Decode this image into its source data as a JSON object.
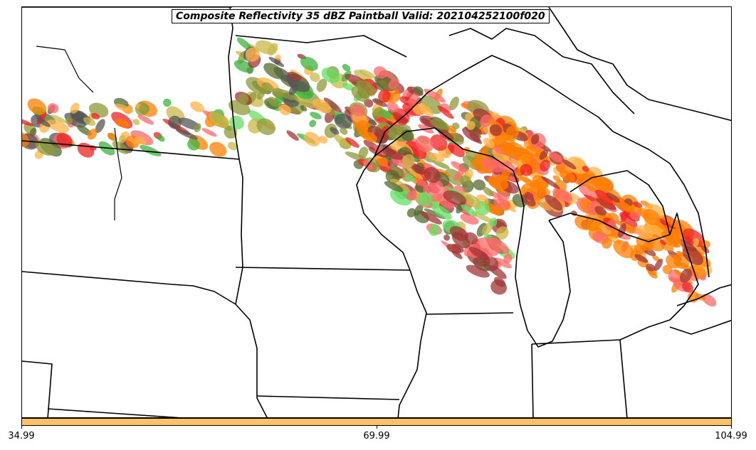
{
  "title": "Composite Reflectivity 35 dBZ Paintball Valid: 202104252100f020",
  "colorbar": {
    "color": "#ffc266",
    "ticks": [
      "34.99",
      "69.99",
      "104.99"
    ]
  },
  "colors": {
    "orange": "#ff7f00",
    "light_orange": "#ffb347",
    "red": "#ee2222",
    "salmon": "#ff6a6a",
    "dark_red": "#a03535",
    "olive": "#8f9a3a",
    "dark_olive": "#556b2f",
    "green": "#3cb33c",
    "light_green": "#66dd66",
    "dark_gray": "#555555",
    "khaki": "#c8b84a"
  }
}
